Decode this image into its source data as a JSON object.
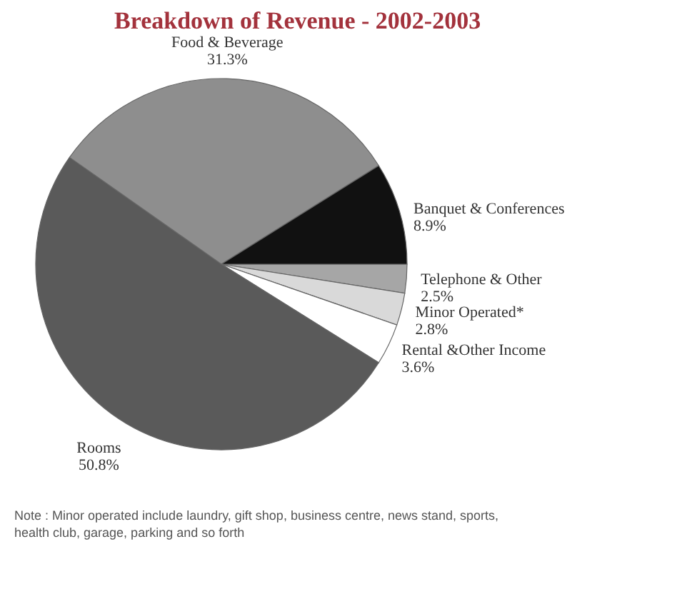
{
  "chart_data": {
    "type": "pie",
    "title": "Breakdown of Revenue - 2002-2003",
    "categories": [
      "Telephone & Other",
      "Minor Operated*",
      "Rental &Other Income",
      "Rooms",
      "Food & Beverage",
      "Banquet & Conferences"
    ],
    "values": [
      2.5,
      2.8,
      3.6,
      50.8,
      31.3,
      8.9
    ],
    "colors": [
      "#a6a6a6",
      "#d9d9d9",
      "#ffffff",
      "#5a5a5a",
      "#8e8e8e",
      "#111111"
    ],
    "value_labels": [
      "2.5%",
      "2.8%",
      "3.6%",
      "50.8%",
      "31.3%",
      "8.9%"
    ],
    "annotations": [
      "Note : Minor operated include laundry, gift shop, business centre, news stand, sports, health club, garage, parking and so forth"
    ]
  }
}
